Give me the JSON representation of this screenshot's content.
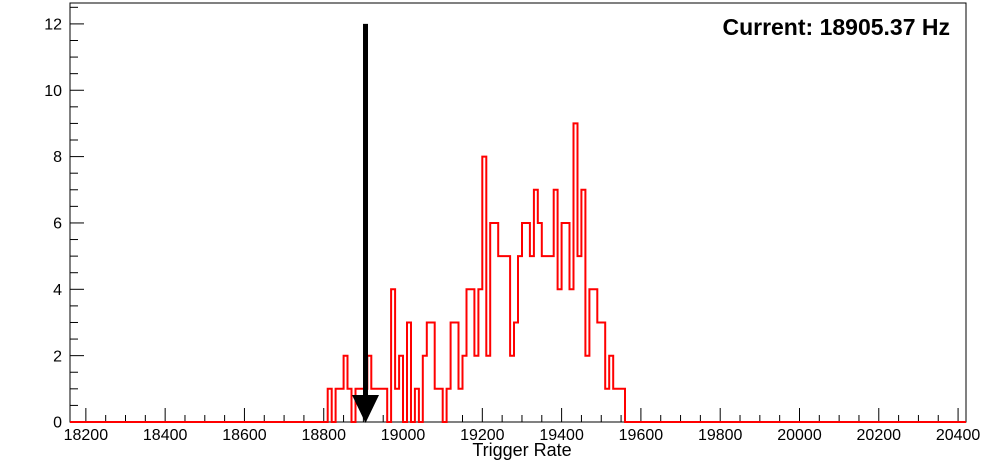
{
  "figure": {
    "background_color": "#ffffff",
    "frame_color": "#000000"
  },
  "annotation": {
    "current_label": "Current: 18905.37 Hz"
  },
  "chart_data": {
    "type": "bar",
    "subtype": "step-histogram",
    "title": "",
    "xlabel": "Trigger Rate",
    "ylabel": "",
    "xlim": [
      18160,
      20420
    ],
    "ylim": [
      0,
      12.63
    ],
    "grid": false,
    "legend": "none",
    "x_ticks": [
      18200,
      18400,
      18600,
      18800,
      19000,
      19200,
      19400,
      19600,
      19800,
      20000,
      20200,
      20400
    ],
    "x_minor_step": 50,
    "y_ticks": [
      0,
      2,
      4,
      6,
      8,
      10,
      12
    ],
    "y_minor_step": 0.5,
    "line_color": "#ff0000",
    "bin_start": 18810,
    "bin_width": 10,
    "counts": [
      1,
      0,
      1,
      1,
      2,
      1,
      0,
      1,
      1,
      1,
      2,
      1,
      1,
      1,
      1,
      0,
      4,
      1,
      2,
      0,
      3,
      0,
      1,
      0,
      2,
      3,
      3,
      1,
      1,
      0,
      1,
      3,
      3,
      1,
      2,
      4,
      4,
      2,
      4,
      8,
      2,
      6,
      6,
      5,
      5,
      5,
      2,
      3,
      5,
      6,
      6,
      5,
      7,
      6,
      5,
      5,
      5,
      7,
      4,
      6,
      6,
      4,
      9,
      5,
      7,
      2,
      4,
      4,
      3,
      3,
      1,
      2,
      1,
      1,
      1
    ],
    "arrow": {
      "x": 18905.37,
      "from_y": 12,
      "to_y": 0,
      "color": "#000000"
    },
    "current_text": "Current: 18905.37 Hz"
  }
}
